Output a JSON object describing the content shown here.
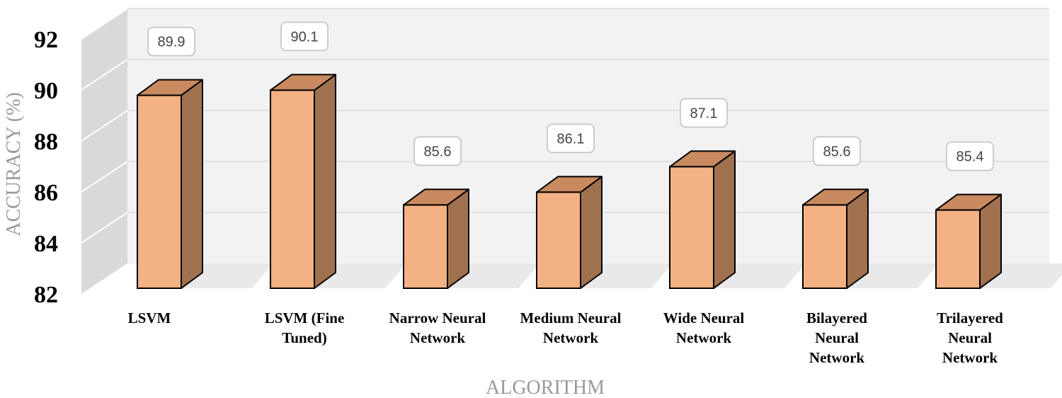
{
  "chart_data": {
    "type": "bar",
    "categories": [
      "LSVM",
      "LSVM (Fine Tuned)",
      "Narrow Neural Network",
      "Medium Neural Network",
      "Wide Neural Network",
      "Bilayered Neural Network",
      "Trilayered Neural Network"
    ],
    "category_lines": [
      [
        "LSVM"
      ],
      [
        "LSVM (Fine",
        "Tuned)"
      ],
      [
        "Narrow Neural",
        "Network"
      ],
      [
        "Medium Neural",
        "Network"
      ],
      [
        "Wide Neural",
        "Network"
      ],
      [
        "Bilayered",
        "Neural",
        "Network"
      ],
      [
        "Trilayered",
        "Neural",
        "Network"
      ]
    ],
    "values": [
      89.9,
      90.1,
      85.6,
      86.1,
      87.1,
      85.6,
      85.4
    ],
    "data_labels": [
      "89.9",
      "90.1",
      "85.6",
      "86.1",
      "87.1",
      "85.6",
      "85.4"
    ],
    "xlabel": "ALGORITHM",
    "ylabel": "ACCURACY (%)",
    "ylim": [
      82,
      92
    ],
    "yticks": [
      82,
      84,
      86,
      88,
      90,
      92
    ],
    "grid": true,
    "bar_style": "3d",
    "colors": {
      "bar_front": "#f4b183",
      "bar_side": "#a0714f",
      "bar_top": "#c98a5f",
      "wall": "#d9d9d9",
      "back_wall": "#f2f2f2",
      "floor": "#cfcfcf"
    }
  }
}
